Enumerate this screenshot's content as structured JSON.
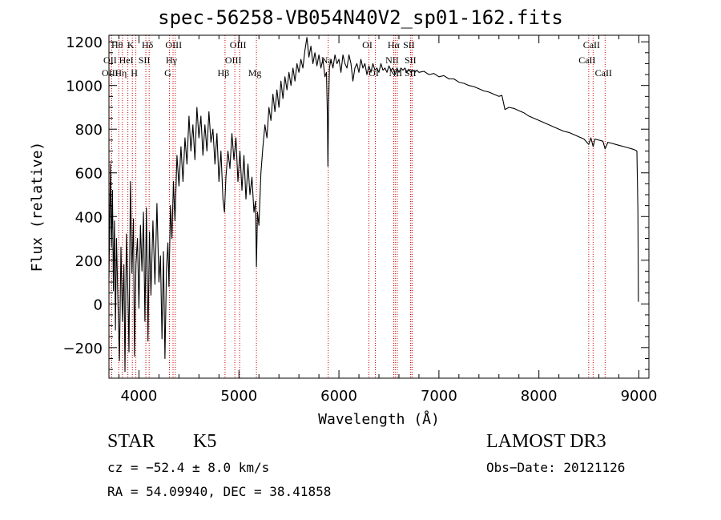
{
  "chart_data": {
    "type": "line",
    "title": "spec-56258-VB054N40V2_sp01-162.fits",
    "xlabel": "Wavelength (Å)",
    "ylabel": "Flux (relative)",
    "xlim": [
      3700,
      9100
    ],
    "ylim": [
      -340,
      1230
    ],
    "xticks": [
      4000,
      5000,
      6000,
      7000,
      8000,
      9000
    ],
    "yticks": [
      -200,
      0,
      200,
      400,
      600,
      800,
      1000,
      1200
    ],
    "grid": false,
    "line_color": "#000000",
    "marker_color": "#cc0000",
    "series": [
      {
        "name": "spectrum",
        "points": [
          [
            3700,
            120
          ],
          [
            3715,
            640
          ],
          [
            3725,
            260
          ],
          [
            3735,
            520
          ],
          [
            3745,
            60
          ],
          [
            3755,
            380
          ],
          [
            3765,
            -120
          ],
          [
            3775,
            300
          ],
          [
            3790,
            20
          ],
          [
            3805,
            -260
          ],
          [
            3820,
            260
          ],
          [
            3835,
            -80
          ],
          [
            3850,
            180
          ],
          [
            3860,
            -310
          ],
          [
            3875,
            320
          ],
          [
            3890,
            40
          ],
          [
            3900,
            -220
          ],
          [
            3915,
            560
          ],
          [
            3930,
            140
          ],
          [
            3945,
            390
          ],
          [
            3955,
            -240
          ],
          [
            3970,
            180
          ],
          [
            3985,
            300
          ],
          [
            4000,
            -20
          ],
          [
            4015,
            360
          ],
          [
            4030,
            150
          ],
          [
            4045,
            420
          ],
          [
            4060,
            -80
          ],
          [
            4075,
            440
          ],
          [
            4090,
            -170
          ],
          [
            4105,
            330
          ],
          [
            4120,
            40
          ],
          [
            4140,
            380
          ],
          [
            4160,
            90
          ],
          [
            4180,
            460
          ],
          [
            4200,
            100
          ],
          [
            4215,
            220
          ],
          [
            4230,
            -160
          ],
          [
            4245,
            240
          ],
          [
            4260,
            -250
          ],
          [
            4275,
            160
          ],
          [
            4290,
            280
          ],
          [
            4300,
            80
          ],
          [
            4315,
            450
          ],
          [
            4330,
            300
          ],
          [
            4345,
            560
          ],
          [
            4360,
            380
          ],
          [
            4380,
            680
          ],
          [
            4400,
            540
          ],
          [
            4420,
            720
          ],
          [
            4440,
            560
          ],
          [
            4460,
            760
          ],
          [
            4480,
            640
          ],
          [
            4500,
            860
          ],
          [
            4520,
            700
          ],
          [
            4540,
            820
          ],
          [
            4560,
            660
          ],
          [
            4580,
            900
          ],
          [
            4600,
            760
          ],
          [
            4620,
            860
          ],
          [
            4640,
            680
          ],
          [
            4660,
            820
          ],
          [
            4680,
            700
          ],
          [
            4700,
            880
          ],
          [
            4720,
            740
          ],
          [
            4740,
            800
          ],
          [
            4760,
            640
          ],
          [
            4780,
            780
          ],
          [
            4800,
            560
          ],
          [
            4820,
            700
          ],
          [
            4840,
            480
          ],
          [
            4855,
            420
          ],
          [
            4870,
            580
          ],
          [
            4890,
            700
          ],
          [
            4910,
            620
          ],
          [
            4930,
            780
          ],
          [
            4950,
            660
          ],
          [
            4970,
            760
          ],
          [
            4990,
            560
          ],
          [
            5010,
            700
          ],
          [
            5030,
            520
          ],
          [
            5050,
            680
          ],
          [
            5070,
            480
          ],
          [
            5090,
            640
          ],
          [
            5110,
            500
          ],
          [
            5130,
            580
          ],
          [
            5150,
            420
          ],
          [
            5165,
            470
          ],
          [
            5175,
            170
          ],
          [
            5185,
            420
          ],
          [
            5200,
            360
          ],
          [
            5220,
            600
          ],
          [
            5240,
            720
          ],
          [
            5260,
            820
          ],
          [
            5280,
            760
          ],
          [
            5300,
            900
          ],
          [
            5320,
            840
          ],
          [
            5340,
            960
          ],
          [
            5360,
            880
          ],
          [
            5380,
            980
          ],
          [
            5400,
            900
          ],
          [
            5420,
            1020
          ],
          [
            5440,
            940
          ],
          [
            5460,
            1040
          ],
          [
            5480,
            980
          ],
          [
            5500,
            1060
          ],
          [
            5520,
            1000
          ],
          [
            5540,
            1080
          ],
          [
            5560,
            1020
          ],
          [
            5580,
            1100
          ],
          [
            5600,
            1060
          ],
          [
            5620,
            1120
          ],
          [
            5640,
            1080
          ],
          [
            5660,
            1160
          ],
          [
            5680,
            1220
          ],
          [
            5700,
            1130
          ],
          [
            5720,
            1180
          ],
          [
            5740,
            1100
          ],
          [
            5760,
            1150
          ],
          [
            5780,
            1090
          ],
          [
            5800,
            1140
          ],
          [
            5820,
            1080
          ],
          [
            5840,
            1120
          ],
          [
            5860,
            1040
          ],
          [
            5875,
            1060
          ],
          [
            5885,
            860
          ],
          [
            5890,
            630
          ],
          [
            5896,
            900
          ],
          [
            5905,
            1080
          ],
          [
            5920,
            1120
          ],
          [
            5940,
            1080
          ],
          [
            5960,
            1140
          ],
          [
            5980,
            1100
          ],
          [
            6000,
            1120
          ],
          [
            6020,
            1060
          ],
          [
            6040,
            1140
          ],
          [
            6060,
            1100
          ],
          [
            6080,
            1080
          ],
          [
            6100,
            1140
          ],
          [
            6120,
            1100
          ],
          [
            6140,
            1020
          ],
          [
            6160,
            1080
          ],
          [
            6180,
            1100
          ],
          [
            6200,
            1060
          ],
          [
            6220,
            1120
          ],
          [
            6240,
            1080
          ],
          [
            6260,
            1100
          ],
          [
            6280,
            1050
          ],
          [
            6300,
            1090
          ],
          [
            6320,
            1060
          ],
          [
            6340,
            1100
          ],
          [
            6360,
            1070
          ],
          [
            6380,
            1080
          ],
          [
            6400,
            1060
          ],
          [
            6420,
            1100
          ],
          [
            6440,
            1070
          ],
          [
            6460,
            1080
          ],
          [
            6480,
            1060
          ],
          [
            6500,
            1090
          ],
          [
            6520,
            1070
          ],
          [
            6540,
            1080
          ],
          [
            6563,
            1050
          ],
          [
            6580,
            1080
          ],
          [
            6600,
            1060
          ],
          [
            6620,
            1080
          ],
          [
            6640,
            1070
          ],
          [
            6660,
            1080
          ],
          [
            6680,
            1060
          ],
          [
            6700,
            1075
          ],
          [
            6720,
            1060
          ],
          [
            6740,
            1070
          ],
          [
            6760,
            1060
          ],
          [
            6780,
            1070
          ],
          [
            6800,
            1060
          ],
          [
            6850,
            1065
          ],
          [
            6900,
            1050
          ],
          [
            6950,
            1055
          ],
          [
            7000,
            1040
          ],
          [
            7050,
            1045
          ],
          [
            7100,
            1030
          ],
          [
            7150,
            1030
          ],
          [
            7200,
            1015
          ],
          [
            7250,
            1010
          ],
          [
            7300,
            1000
          ],
          [
            7350,
            995
          ],
          [
            7400,
            985
          ],
          [
            7450,
            975
          ],
          [
            7500,
            970
          ],
          [
            7550,
            960
          ],
          [
            7600,
            950
          ],
          [
            7630,
            955
          ],
          [
            7660,
            890
          ],
          [
            7700,
            900
          ],
          [
            7750,
            895
          ],
          [
            7800,
            885
          ],
          [
            7850,
            875
          ],
          [
            7900,
            860
          ],
          [
            7950,
            850
          ],
          [
            8000,
            840
          ],
          [
            8050,
            830
          ],
          [
            8100,
            820
          ],
          [
            8150,
            810
          ],
          [
            8200,
            800
          ],
          [
            8250,
            790
          ],
          [
            8300,
            785
          ],
          [
            8350,
            775
          ],
          [
            8400,
            765
          ],
          [
            8450,
            755
          ],
          [
            8498,
            730
          ],
          [
            8520,
            760
          ],
          [
            8542,
            720
          ],
          [
            8560,
            755
          ],
          [
            8600,
            750
          ],
          [
            8640,
            745
          ],
          [
            8662,
            710
          ],
          [
            8690,
            740
          ],
          [
            8730,
            735
          ],
          [
            8770,
            730
          ],
          [
            8810,
            725
          ],
          [
            8850,
            720
          ],
          [
            8890,
            715
          ],
          [
            8930,
            710
          ],
          [
            8960,
            705
          ],
          [
            8980,
            700
          ],
          [
            8990,
            420
          ],
          [
            8995,
            10
          ]
        ]
      }
    ],
    "line_markers": [
      {
        "label": "Hθ",
        "x": 3798,
        "row": 0
      },
      {
        "label": "OII",
        "x": 3727,
        "row": 1
      },
      {
        "label": "OIII",
        "x": 3727,
        "row": 2
      },
      {
        "label": "K",
        "x": 3934,
        "row": 0
      },
      {
        "label": "HeI",
        "x": 3889,
        "row": 1
      },
      {
        "label": "Hη",
        "x": 3835,
        "row": 2
      },
      {
        "label": "Hδ",
        "x": 4102,
        "row": 0
      },
      {
        "label": "SII",
        "x": 4069,
        "row": 1
      },
      {
        "label": "H",
        "x": 3969,
        "row": 2
      },
      {
        "label": "OIII",
        "x": 4363,
        "row": 0
      },
      {
        "label": "Hγ",
        "x": 4341,
        "row": 1
      },
      {
        "label": "G",
        "x": 4305,
        "row": 2
      },
      {
        "label": "OIII",
        "x": 5007,
        "row": 0
      },
      {
        "label": "OIII",
        "x": 4959,
        "row": 1
      },
      {
        "label": "Hβ",
        "x": 4861,
        "row": 2
      },
      {
        "label": "Mg",
        "x": 5175,
        "row": 2
      },
      {
        "label": "Na",
        "x": 5893,
        "row": 1
      },
      {
        "label": "OI",
        "x": 6300,
        "row": 0
      },
      {
        "label": "OI",
        "x": 6364,
        "row": 2
      },
      {
        "label": "Hα",
        "x": 6563,
        "row": 0
      },
      {
        "label": "NII",
        "x": 6548,
        "row": 1
      },
      {
        "label": "NII",
        "x": 6583,
        "row": 2
      },
      {
        "label": "SII",
        "x": 6716,
        "row": 0
      },
      {
        "label": "SII",
        "x": 6731,
        "row": 1
      },
      {
        "label": "SII",
        "x": 6731,
        "row": 2
      },
      {
        "label": "CaII",
        "x": 8542,
        "row": 0
      },
      {
        "label": "CaII",
        "x": 8498,
        "row": 1
      },
      {
        "label": "CaII",
        "x": 8662,
        "row": 2
      }
    ]
  },
  "info": {
    "class": "STAR",
    "subclass": "K5",
    "survey": "LAMOST DR3",
    "cz": "cz = −52.4 ± 8.0 km/s",
    "obs_date": "Obs−Date: 20121126",
    "radec": "RA =  54.09940, DEC =  38.41858"
  }
}
